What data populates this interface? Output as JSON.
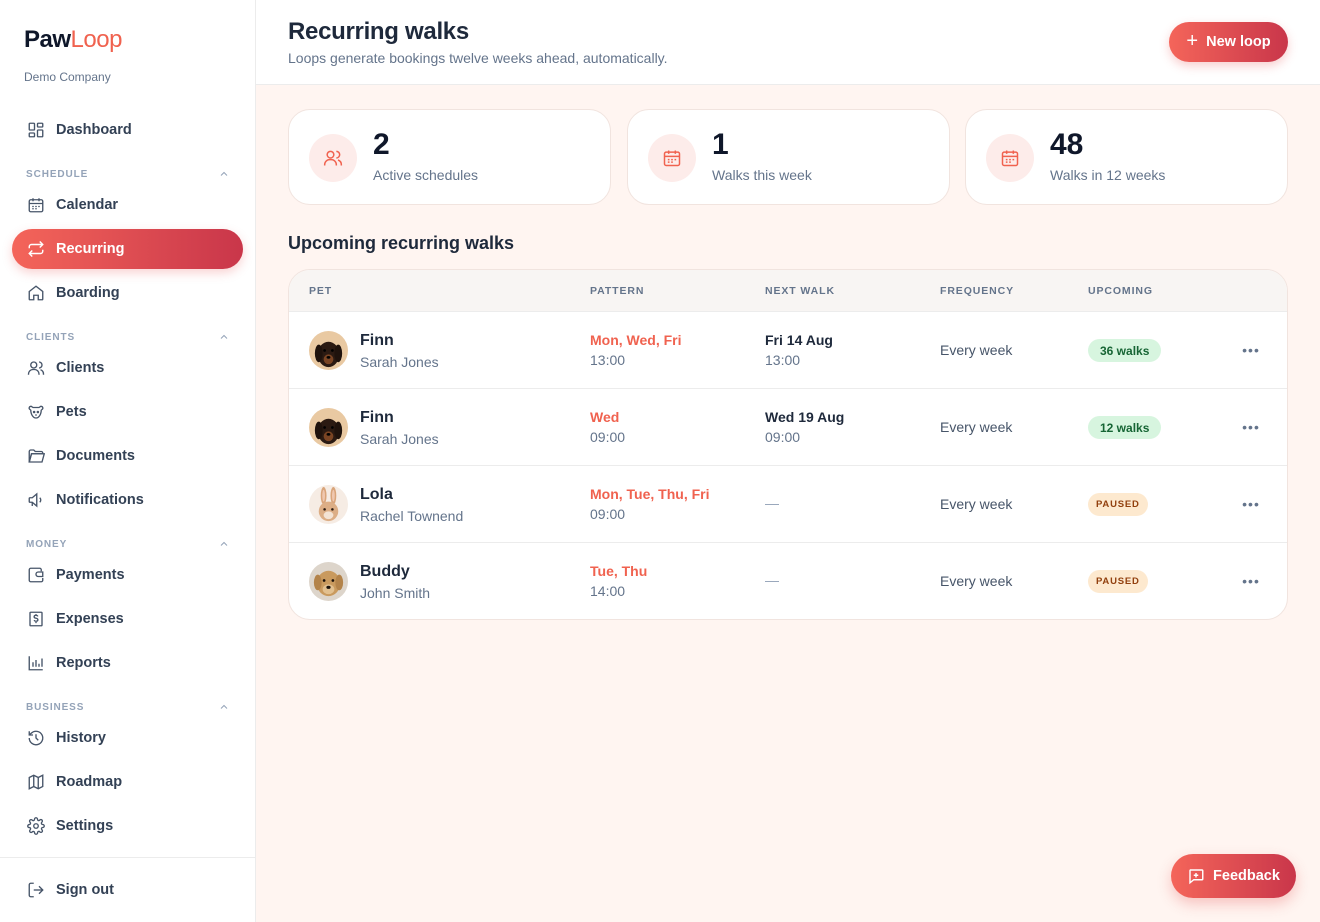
{
  "brand": {
    "name_part1": "Paw",
    "name_part2": "Loop",
    "company": "Demo Company",
    "accent": "#f0624f"
  },
  "sidebar": {
    "dashboard": {
      "label": "Dashboard",
      "icon": "dashboard-icon"
    },
    "sections": {
      "schedule": "SCHEDULE",
      "clients": "CLIENTS",
      "money": "MONEY",
      "business": "BUSINESS"
    },
    "items": {
      "calendar": {
        "label": "Calendar",
        "icon": "calendar-icon"
      },
      "recurring": {
        "label": "Recurring",
        "icon": "repeat-icon",
        "active": true
      },
      "boarding": {
        "label": "Boarding",
        "icon": "home-icon"
      },
      "clients": {
        "label": "Clients",
        "icon": "users-icon"
      },
      "pets": {
        "label": "Pets",
        "icon": "paw-icon"
      },
      "documents": {
        "label": "Documents",
        "icon": "folder-icon"
      },
      "notifications": {
        "label": "Notifications",
        "icon": "megaphone-icon"
      },
      "payments": {
        "label": "Payments",
        "icon": "wallet-icon"
      },
      "expenses": {
        "label": "Expenses",
        "icon": "receipt-icon"
      },
      "reports": {
        "label": "Reports",
        "icon": "bar-chart-icon"
      },
      "history": {
        "label": "History",
        "icon": "history-icon"
      },
      "roadmap": {
        "label": "Roadmap",
        "icon": "map-icon"
      },
      "settings": {
        "label": "Settings",
        "icon": "gear-icon"
      }
    },
    "sign_out": {
      "label": "Sign out",
      "icon": "logout-icon"
    }
  },
  "header": {
    "title": "Recurring walks",
    "subtitle": "Loops generate bookings twelve weeks ahead, automatically.",
    "new_button": "New loop"
  },
  "stats": [
    {
      "value": "2",
      "label": "Active schedules",
      "icon": "users-icon"
    },
    {
      "value": "1",
      "label": "Walks this week",
      "icon": "calendar-icon"
    },
    {
      "value": "48",
      "label": "Walks in 12 weeks",
      "icon": "calendar-icon"
    }
  ],
  "table": {
    "heading": "Upcoming recurring walks",
    "columns": {
      "pet": "PET",
      "pattern": "PATTERN",
      "next": "NEXT WALK",
      "frequency": "FREQUENCY",
      "upcoming": "UPCOMING"
    },
    "rows": [
      {
        "pet": "Finn",
        "owner": "Sarah Jones",
        "days": "Mon, Wed, Fri",
        "time": "13:00",
        "next_date": "Fri 14 Aug",
        "next_time": "13:00",
        "frequency": "Every week",
        "upcoming": "36 walks",
        "status": "active",
        "avatar": "dachshund"
      },
      {
        "pet": "Finn",
        "owner": "Sarah Jones",
        "days": "Wed",
        "time": "09:00",
        "next_date": "Wed 19 Aug",
        "next_time": "09:00",
        "frequency": "Every week",
        "upcoming": "12 walks",
        "status": "active",
        "avatar": "dachshund"
      },
      {
        "pet": "Lola",
        "owner": "Rachel Townend",
        "days": "Mon, Tue, Thu, Fri",
        "time": "09:00",
        "next_date": "—",
        "next_time": "",
        "frequency": "Every week",
        "upcoming": "PAUSED",
        "status": "paused",
        "avatar": "rabbit"
      },
      {
        "pet": "Buddy",
        "owner": "John Smith",
        "days": "Tue, Thu",
        "time": "14:00",
        "next_date": "—",
        "next_time": "",
        "frequency": "Every week",
        "upcoming": "PAUSED",
        "status": "paused",
        "avatar": "golden-retriever"
      }
    ]
  },
  "feedback": {
    "label": "Feedback"
  }
}
